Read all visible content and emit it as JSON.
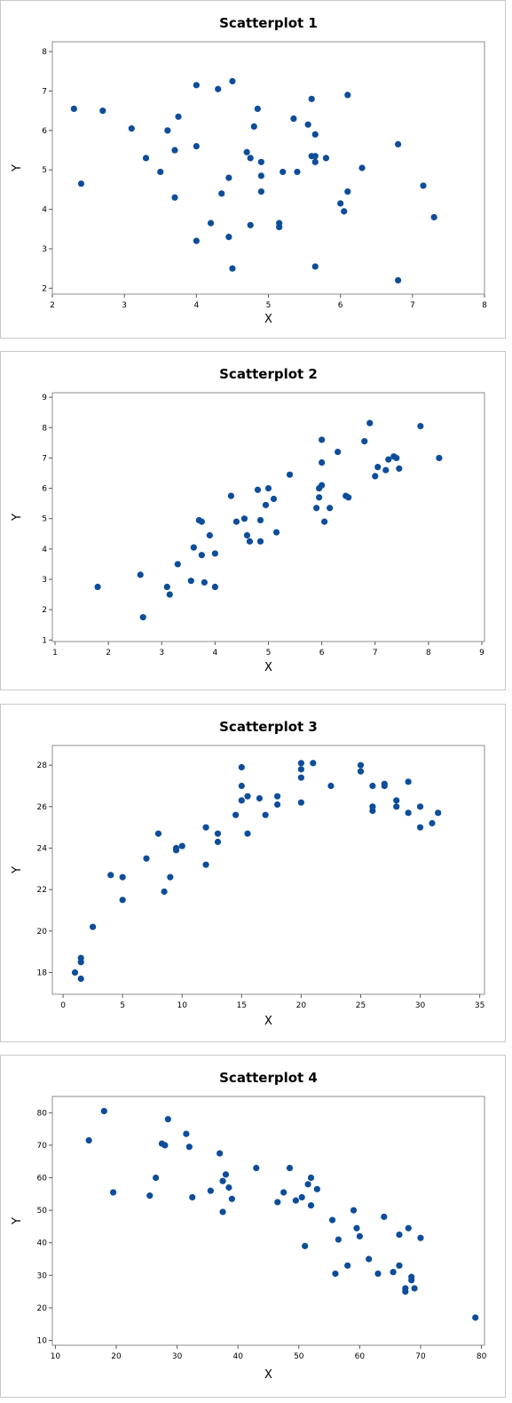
{
  "colors": {
    "point": "#0d4d9a",
    "frame": "#8c8c8c",
    "background": "#ffffff"
  },
  "chart_data": [
    {
      "type": "scatter",
      "title": "Scatterplot 1",
      "xlabel": "X",
      "ylabel": "Y",
      "xlim": [
        2,
        8
      ],
      "ylim": [
        2,
        8
      ],
      "xticks": [
        2,
        3,
        4,
        5,
        6,
        7,
        8
      ],
      "yticks": [
        2,
        3,
        4,
        5,
        6,
        7,
        8
      ],
      "grid": false,
      "points": [
        [
          2.3,
          6.55
        ],
        [
          2.4,
          4.65
        ],
        [
          2.7,
          6.5
        ],
        [
          3.1,
          6.05
        ],
        [
          3.3,
          5.3
        ],
        [
          3.5,
          4.95
        ],
        [
          3.6,
          6.0
        ],
        [
          3.7,
          5.5
        ],
        [
          3.75,
          6.35
        ],
        [
          3.7,
          4.3
        ],
        [
          4.0,
          7.15
        ],
        [
          4.0,
          5.6
        ],
        [
          4.0,
          3.2
        ],
        [
          4.2,
          3.65
        ],
        [
          4.3,
          7.05
        ],
        [
          4.35,
          4.4
        ],
        [
          4.45,
          4.8
        ],
        [
          4.45,
          3.3
        ],
        [
          4.5,
          7.25
        ],
        [
          4.5,
          2.5
        ],
        [
          4.7,
          5.45
        ],
        [
          4.75,
          5.3
        ],
        [
          4.75,
          3.6
        ],
        [
          4.8,
          6.1
        ],
        [
          4.85,
          6.55
        ],
        [
          4.9,
          5.2
        ],
        [
          4.9,
          4.85
        ],
        [
          4.9,
          4.45
        ],
        [
          5.15,
          3.65
        ],
        [
          5.15,
          3.55
        ],
        [
          5.2,
          4.95
        ],
        [
          5.35,
          6.3
        ],
        [
          5.4,
          4.95
        ],
        [
          5.55,
          6.15
        ],
        [
          5.6,
          6.8
        ],
        [
          5.6,
          5.35
        ],
        [
          5.65,
          5.35
        ],
        [
          5.65,
          5.2
        ],
        [
          5.65,
          5.9
        ],
        [
          5.65,
          2.55
        ],
        [
          5.8,
          5.3
        ],
        [
          6.0,
          4.15
        ],
        [
          6.05,
          3.95
        ],
        [
          6.1,
          6.9
        ],
        [
          6.1,
          4.45
        ],
        [
          6.3,
          5.05
        ],
        [
          6.8,
          5.65
        ],
        [
          6.8,
          2.2
        ],
        [
          7.15,
          4.6
        ],
        [
          7.3,
          3.8
        ]
      ]
    },
    {
      "type": "scatter",
      "title": "Scatterplot 2",
      "xlabel": "X",
      "ylabel": "Y",
      "xlim": [
        1,
        9
      ],
      "ylim": [
        1,
        9
      ],
      "xticks": [
        1,
        2,
        3,
        4,
        5,
        6,
        7,
        8,
        9
      ],
      "yticks": [
        1,
        2,
        3,
        4,
        5,
        6,
        7,
        8,
        9
      ],
      "grid": false,
      "points": [
        [
          1.8,
          2.75
        ],
        [
          2.6,
          3.15
        ],
        [
          2.65,
          1.75
        ],
        [
          3.1,
          2.75
        ],
        [
          3.15,
          2.5
        ],
        [
          3.3,
          3.5
        ],
        [
          3.55,
          2.95
        ],
        [
          3.6,
          4.05
        ],
        [
          3.7,
          4.95
        ],
        [
          3.75,
          4.9
        ],
        [
          3.75,
          3.8
        ],
        [
          3.8,
          2.9
        ],
        [
          3.9,
          4.45
        ],
        [
          4.0,
          3.85
        ],
        [
          4.0,
          2.75
        ],
        [
          4.3,
          5.75
        ],
        [
          4.4,
          4.9
        ],
        [
          4.55,
          5.0
        ],
        [
          4.6,
          4.45
        ],
        [
          4.65,
          4.25
        ],
        [
          4.8,
          5.95
        ],
        [
          4.85,
          4.95
        ],
        [
          4.85,
          4.25
        ],
        [
          4.95,
          5.45
        ],
        [
          5.0,
          6.0
        ],
        [
          5.1,
          5.65
        ],
        [
          5.15,
          4.55
        ],
        [
          5.4,
          6.45
        ],
        [
          5.9,
          5.35
        ],
        [
          5.95,
          5.7
        ],
        [
          5.95,
          6.0
        ],
        [
          6.0,
          6.1
        ],
        [
          6.0,
          7.6
        ],
        [
          6.0,
          6.85
        ],
        [
          6.05,
          4.9
        ],
        [
          6.15,
          5.35
        ],
        [
          6.3,
          7.2
        ],
        [
          6.45,
          5.75
        ],
        [
          6.5,
          5.7
        ],
        [
          6.8,
          7.55
        ],
        [
          6.9,
          8.15
        ],
        [
          7.0,
          6.4
        ],
        [
          7.05,
          6.7
        ],
        [
          7.2,
          6.6
        ],
        [
          7.25,
          6.95
        ],
        [
          7.35,
          7.05
        ],
        [
          7.4,
          7.0
        ],
        [
          7.45,
          6.65
        ],
        [
          7.85,
          8.05
        ],
        [
          8.2,
          7.0
        ]
      ]
    },
    {
      "type": "scatter",
      "title": "Scatterplot 3",
      "xlabel": "X",
      "ylabel": "Y",
      "xlim": [
        0,
        35
      ],
      "ylim": [
        17,
        29
      ],
      "xticks": [
        0,
        5,
        10,
        15,
        20,
        25,
        30,
        35
      ],
      "yticks": [
        18,
        20,
        22,
        24,
        26,
        28
      ],
      "grid": false,
      "points": [
        [
          1.0,
          18.0
        ],
        [
          1.5,
          18.7
        ],
        [
          1.5,
          18.5
        ],
        [
          1.5,
          17.7
        ],
        [
          2.5,
          20.2
        ],
        [
          4.0,
          22.7
        ],
        [
          5.0,
          22.6
        ],
        [
          5.0,
          21.5
        ],
        [
          7.0,
          23.5
        ],
        [
          8.0,
          24.7
        ],
        [
          8.5,
          21.9
        ],
        [
          9.0,
          22.6
        ],
        [
          9.5,
          24.0
        ],
        [
          9.5,
          23.9
        ],
        [
          10.0,
          24.1
        ],
        [
          12.0,
          25.0
        ],
        [
          12.0,
          23.2
        ],
        [
          13.0,
          24.7
        ],
        [
          13.0,
          24.3
        ],
        [
          14.5,
          25.6
        ],
        [
          15.0,
          27.9
        ],
        [
          15.0,
          27.0
        ],
        [
          15.0,
          26.3
        ],
        [
          15.5,
          26.5
        ],
        [
          15.5,
          24.7
        ],
        [
          16.5,
          26.4
        ],
        [
          17.0,
          25.6
        ],
        [
          18.0,
          26.5
        ],
        [
          18.0,
          26.1
        ],
        [
          20.0,
          28.1
        ],
        [
          20.0,
          27.8
        ],
        [
          20.0,
          27.4
        ],
        [
          20.0,
          26.2
        ],
        [
          21.0,
          28.1
        ],
        [
          22.5,
          27.0
        ],
        [
          25.0,
          28.0
        ],
        [
          25.0,
          27.7
        ],
        [
          26.0,
          27.0
        ],
        [
          26.0,
          26.0
        ],
        [
          26.0,
          25.8
        ],
        [
          27.0,
          27.1
        ],
        [
          27.0,
          27.0
        ],
        [
          28.0,
          26.3
        ],
        [
          28.0,
          26.0
        ],
        [
          29.0,
          27.2
        ],
        [
          29.0,
          25.7
        ],
        [
          30.0,
          26.0
        ],
        [
          30.0,
          25.0
        ],
        [
          31.0,
          25.2
        ],
        [
          31.5,
          25.7
        ]
      ]
    },
    {
      "type": "scatter",
      "title": "Scatterplot 4",
      "xlabel": "X",
      "ylabel": "Y",
      "xlim": [
        10,
        80
      ],
      "ylim": [
        10,
        85
      ],
      "xticks": [
        10,
        20,
        30,
        40,
        50,
        60,
        70,
        80
      ],
      "yticks": [
        10,
        20,
        30,
        40,
        50,
        60,
        70,
        80
      ],
      "grid": false,
      "points": [
        [
          15.5,
          71.5
        ],
        [
          18.0,
          80.5
        ],
        [
          19.5,
          55.5
        ],
        [
          25.5,
          54.5
        ],
        [
          26.5,
          60.0
        ],
        [
          27.5,
          70.5
        ],
        [
          28.0,
          70.0
        ],
        [
          28.5,
          78.0
        ],
        [
          31.5,
          73.5
        ],
        [
          32.0,
          69.5
        ],
        [
          32.5,
          54.0
        ],
        [
          35.5,
          56.0
        ],
        [
          37.0,
          67.5
        ],
        [
          37.5,
          59.0
        ],
        [
          37.5,
          49.5
        ],
        [
          38.0,
          61.0
        ],
        [
          38.5,
          57.0
        ],
        [
          39.0,
          53.5
        ],
        [
          43.0,
          63.0
        ],
        [
          46.5,
          52.5
        ],
        [
          47.5,
          55.5
        ],
        [
          48.5,
          63.0
        ],
        [
          49.5,
          53.0
        ],
        [
          50.5,
          54.0
        ],
        [
          51.0,
          39.0
        ],
        [
          51.5,
          58.0
        ],
        [
          52.0,
          60.0
        ],
        [
          52.0,
          51.5
        ],
        [
          53.0,
          56.5
        ],
        [
          55.5,
          47.0
        ],
        [
          56.0,
          30.5
        ],
        [
          56.5,
          41.0
        ],
        [
          58.0,
          33.0
        ],
        [
          59.0,
          50.0
        ],
        [
          59.5,
          44.5
        ],
        [
          60.0,
          42.0
        ],
        [
          61.5,
          35.0
        ],
        [
          63.0,
          30.5
        ],
        [
          64.0,
          48.0
        ],
        [
          65.5,
          31.0
        ],
        [
          66.5,
          42.5
        ],
        [
          66.5,
          33.0
        ],
        [
          67.5,
          26.0
        ],
        [
          67.5,
          25.0
        ],
        [
          68.0,
          44.5
        ],
        [
          68.5,
          28.5
        ],
        [
          68.5,
          29.5
        ],
        [
          69.0,
          26.0
        ],
        [
          70.0,
          41.5
        ],
        [
          79.0,
          17.0
        ]
      ]
    }
  ]
}
